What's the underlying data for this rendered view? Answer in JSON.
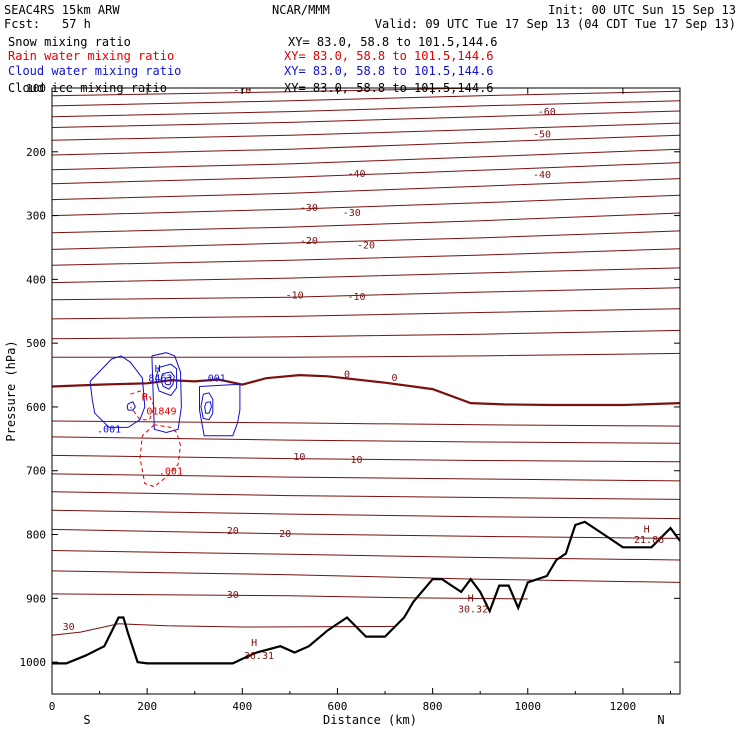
{
  "header": {
    "model": "SEAC4RS 15km ARW",
    "org": "NCAR/MMM",
    "init": "Init: 00 UTC Sun 15 Sep 13",
    "fcst_label": "Fcst:",
    "fcst_value": "57 h",
    "valid": "Valid: 09 UTC Tue 17 Sep 13 (04 CDT Tue 17 Sep 13)",
    "fields": [
      {
        "name": "Snow mixing ratio",
        "xy": "XY=  83.0, 58.8 to 101.5,144.6",
        "color": "#000000"
      },
      {
        "name": "Rain water mixing ratio",
        "xy": "XY=  83.0, 58.8 to 101.5,144.6",
        "color": "#e00000"
      },
      {
        "name": "Cloud water mixing ratio",
        "xy": "XY=  83.0, 58.8 to 101.5,144.6",
        "color": "#1010d0"
      },
      {
        "name": "Cloud ice mixing ratio",
        "xy": "XY=  83.0, 58.8 to 101.5,144.6",
        "color": "#000000"
      }
    ]
  },
  "chart_data": {
    "type": "line",
    "xlabel": "Distance (km)",
    "ylabel": "Pressure (hPa)",
    "xlim": [
      0,
      1320
    ],
    "ylim": [
      1050,
      100
    ],
    "yticks": [
      100,
      200,
      300,
      400,
      500,
      600,
      700,
      800,
      900,
      1000
    ],
    "xticks": [
      0,
      200,
      400,
      600,
      800,
      1000,
      1200
    ],
    "ytick_labels": [
      "100",
      "200",
      "300",
      "400",
      "500",
      "600",
      "700",
      "800",
      "900",
      "1000"
    ],
    "xtick_labels": [
      "0",
      "200",
      "400",
      "600",
      "800",
      "1000",
      "1200"
    ],
    "end_labels": {
      "left": "S",
      "right": "N"
    },
    "colors": {
      "temperature": "#7a1010",
      "terrain": "#000000",
      "rain": "#e00000",
      "cloud": "#1010d0"
    },
    "isotherms": [
      {
        "x": [
          0,
          500,
          900,
          1320
        ],
        "y": [
          112,
          106,
          100,
          93
        ]
      },
      {
        "x": [
          0,
          500,
          900,
          1320
        ],
        "y": [
          128,
          120,
          112,
          105
        ],
        "label": "-70",
        "lx": 400,
        "ly": 104
      },
      {
        "x": [
          0,
          500,
          900,
          1320
        ],
        "y": [
          145,
          137,
          128,
          120
        ]
      },
      {
        "x": [
          0,
          500,
          900,
          1320
        ],
        "y": [
          162,
          154,
          145,
          136
        ],
        "label": "-60",
        "lx": 1040,
        "ly": 138
      },
      {
        "x": [
          0,
          500,
          900,
          1320
        ],
        "y": [
          182,
          174,
          165,
          155
        ]
      },
      {
        "x": [
          0,
          500,
          900,
          1320
        ],
        "y": [
          205,
          196,
          185,
          174
        ],
        "label": "-50",
        "lx": 1030,
        "ly": 173
      },
      {
        "x": [
          0,
          500,
          900,
          1320
        ],
        "y": [
          228,
          219,
          208,
          196
        ]
      },
      {
        "x": [
          0,
          500,
          900,
          1320
        ],
        "y": [
          250,
          240,
          229,
          217
        ],
        "label": "-40",
        "lx": 640,
        "ly": 235
      },
      {
        "x": [
          0,
          500,
          900,
          1320
        ],
        "y": [
          275,
          265,
          254,
          242
        ]
      },
      {
        "x": [
          0,
          500,
          900,
          1320
        ],
        "y": [
          300,
          290,
          280,
          268
        ],
        "label": "-30",
        "lx": 540,
        "ly": 288
      },
      {
        "x": [
          0,
          500,
          900,
          1320
        ],
        "y": [
          327,
          318,
          308,
          296
        ]
      },
      {
        "x": [
          0,
          500,
          900,
          1320
        ],
        "y": [
          353,
          343,
          335,
          324
        ],
        "label": "-20",
        "lx": 540,
        "ly": 340
      },
      {
        "x": [
          0,
          500,
          900,
          1320
        ],
        "y": [
          378,
          370,
          362,
          352
        ]
      },
      {
        "x": [
          0,
          500,
          900,
          1320
        ],
        "y": [
          405,
          398,
          390,
          382
        ]
      },
      {
        "x": [
          0,
          500,
          900,
          1320
        ],
        "y": [
          432,
          428,
          420,
          413
        ],
        "label": "-10",
        "lx": 510,
        "ly": 425
      },
      {
        "x": [
          0,
          500,
          900,
          1320
        ],
        "y": [
          462,
          458,
          452,
          446
        ]
      },
      {
        "x": [
          0,
          500,
          900,
          1320
        ],
        "y": [
          493,
          490,
          486,
          480
        ]
      },
      {
        "x": [
          0,
          500,
          900,
          1320
        ],
        "y": [
          522,
          522,
          520,
          516
        ]
      },
      {
        "x": [
          0,
          500,
          900,
          1320
        ],
        "y": [
          622,
          625,
          628,
          630
        ]
      },
      {
        "x": [
          0,
          500,
          900,
          1320
        ],
        "y": [
          647,
          652,
          655,
          657
        ]
      },
      {
        "x": [
          0,
          500,
          900,
          1320
        ],
        "y": [
          676,
          681,
          684,
          686
        ],
        "label": "10",
        "lx": 640,
        "ly": 683
      },
      {
        "x": [
          0,
          500,
          900,
          1320
        ],
        "y": [
          705,
          710,
          713,
          716
        ]
      },
      {
        "x": [
          0,
          500,
          900,
          1320
        ],
        "y": [
          733,
          739,
          742,
          745
        ]
      },
      {
        "x": [
          0,
          500,
          900,
          1320
        ],
        "y": [
          762,
          768,
          772,
          775
        ]
      },
      {
        "x": [
          0,
          500,
          900,
          1320
        ],
        "y": [
          792,
          799,
          803,
          806
        ],
        "label": "20",
        "lx": 490,
        "ly": 799
      },
      {
        "x": [
          0,
          500,
          900,
          1320
        ],
        "y": [
          825,
          831,
          836,
          840
        ]
      },
      {
        "x": [
          0,
          500,
          900,
          1320
        ],
        "y": [
          857,
          863,
          870,
          875
        ]
      },
      {
        "x": [
          0,
          500,
          740,
          1000
        ],
        "y": [
          893,
          896,
          899,
          901
        ],
        "label": "30",
        "lx": 380,
        "ly": 895
      },
      {
        "x": [
          0,
          60,
          140,
          240,
          400,
          720
        ],
        "y": [
          958,
          953,
          940,
          943,
          945,
          944
        ]
      }
    ],
    "zero_isotherm": {
      "x": [
        0,
        100,
        200,
        250,
        300,
        350,
        400,
        450,
        520,
        580,
        700,
        800,
        880,
        950,
        1050,
        1200,
        1320
      ],
      "y": [
        568,
        565,
        563,
        558,
        560,
        557,
        565,
        555,
        550,
        552,
        562,
        572,
        594,
        596,
        597,
        597,
        594
      ],
      "label": "0",
      "lx": 720,
      "ly": 555
    },
    "terrain": {
      "x": [
        0,
        30,
        70,
        110,
        140,
        150,
        160,
        180,
        200,
        240,
        300,
        380,
        400,
        430,
        480,
        510,
        540,
        580,
        620,
        660,
        700,
        740,
        760,
        800,
        820,
        840,
        860,
        880,
        900,
        920,
        940,
        960,
        980,
        1000,
        1040,
        1060,
        1080,
        1100,
        1120,
        1160,
        1200,
        1240,
        1260,
        1300,
        1320
      ],
      "y": [
        1002,
        1002,
        990,
        975,
        930,
        930,
        955,
        1000,
        1002,
        1002,
        1002,
        1002,
        995,
        985,
        975,
        985,
        975,
        950,
        930,
        960,
        960,
        930,
        905,
        870,
        870,
        880,
        890,
        870,
        890,
        920,
        880,
        880,
        915,
        875,
        865,
        840,
        830,
        785,
        780,
        800,
        820,
        820,
        820,
        790,
        810
      ]
    },
    "cloud_water_contours": [
      {
        "x": [
          80,
          125,
          145,
          165,
          190,
          195,
          185,
          160,
          120,
          90,
          85,
          80
        ],
        "y": [
          560,
          525,
          520,
          530,
          555,
          600,
          620,
          632,
          632,
          610,
          590,
          560
        ]
      },
      {
        "x": [
          210,
          240,
          258,
          270,
          272,
          265,
          240,
          215,
          210
        ],
        "y": [
          520,
          515,
          520,
          545,
          600,
          635,
          640,
          635,
          520
        ]
      },
      {
        "x": [
          310,
          380,
          395,
          395,
          390,
          380,
          320,
          310,
          310
        ],
        "y": [
          568,
          565,
          565,
          605,
          625,
          645,
          645,
          605,
          568
        ]
      },
      {
        "x": [
          225,
          250,
          262,
          262,
          250,
          225,
          218,
          225
        ],
        "y": [
          538,
          533,
          540,
          570,
          582,
          575,
          555,
          538
        ]
      },
      {
        "x": [
          232,
          250,
          257,
          254,
          246,
          234,
          229,
          232
        ],
        "y": [
          548,
          545,
          552,
          565,
          572,
          568,
          558,
          548
        ]
      },
      {
        "x": [
          239,
          248,
          251,
          248,
          240,
          236,
          239
        ],
        "y": [
          555,
          553,
          558,
          565,
          565,
          560,
          555
        ]
      },
      {
        "x": [
          318,
          330,
          338,
          338,
          330,
          318,
          313,
          318
        ],
        "y": [
          580,
          578,
          588,
          610,
          620,
          618,
          600,
          580
        ]
      },
      {
        "x": [
          324,
          333,
          335,
          330,
          323,
          321,
          324
        ],
        "y": [
          593,
          592,
          600,
          610,
          610,
          600,
          593
        ]
      },
      {
        "x": [
          160,
          170,
          175,
          170,
          160,
          158,
          160
        ],
        "y": [
          595,
          592,
          600,
          605,
          605,
          600,
          595
        ]
      }
    ],
    "rain_contours": [
      {
        "x": [
          215,
          190,
          185,
          195,
          215,
          240,
          265,
          270,
          262,
          250,
          215
        ],
        "y": [
          628,
          645,
          680,
          720,
          725,
          710,
          690,
          660,
          640,
          632,
          628
        ]
      },
      {
        "x": [
          165,
          185,
          205,
          215,
          205,
          185,
          165
        ],
        "y": [
          580,
          575,
          583,
          600,
          620,
          620,
          600
        ]
      }
    ],
    "annotations": [
      {
        "text": "H",
        "x": 222,
        "y": 545,
        "color": "#1010d0"
      },
      {
        "text": "8463",
        "x": 228,
        "y": 560,
        "color": "#1010d0"
      },
      {
        "text": ".001",
        "x": 340,
        "y": 560,
        "color": "#1010d0"
      },
      {
        "text": ".001",
        "x": 120,
        "y": 640,
        "color": "#1010d0"
      },
      {
        "text": "H",
        "x": 195,
        "y": 590,
        "color": "#e00000"
      },
      {
        "text": "01849",
        "x": 230,
        "y": 612,
        "color": "#e00000"
      },
      {
        "text": ".001",
        "x": 250,
        "y": 706,
        "color": "#e00000"
      },
      {
        "text": "-70",
        "x": 400,
        "y": 104,
        "color": "#7a1010"
      },
      {
        "text": "-70",
        "x": 775,
        "y": 102,
        "color": "#7a1010"
      },
      {
        "text": "-40",
        "x": 1030,
        "y": 241,
        "color": "#7a1010"
      },
      {
        "text": "-30",
        "x": 630,
        "y": 301,
        "color": "#7a1010"
      },
      {
        "text": "-20",
        "x": 660,
        "y": 352,
        "color": "#7a1010"
      },
      {
        "text": "-10",
        "x": 640,
        "y": 432,
        "color": "#7a1010"
      },
      {
        "text": "0",
        "x": 620,
        "y": 554,
        "color": "#7a1010"
      },
      {
        "text": "10",
        "x": 520,
        "y": 683,
        "color": "#7a1010"
      },
      {
        "text": "20",
        "x": 380,
        "y": 799,
        "color": "#7a1010"
      },
      {
        "text": "30",
        "x": 35,
        "y": 950,
        "color": "#7a1010"
      },
      {
        "text": "H",
        "x": 425,
        "y": 975,
        "color": "#7a1010"
      },
      {
        "text": "36.31",
        "x": 435,
        "y": 995,
        "color": "#7a1010"
      },
      {
        "text": "H",
        "x": 880,
        "y": 905,
        "color": "#7a1010"
      },
      {
        "text": "30.32",
        "x": 885,
        "y": 922,
        "color": "#7a1010"
      },
      {
        "text": "H",
        "x": 1250,
        "y": 797,
        "color": "#7a1010"
      },
      {
        "text": "21.86",
        "x": 1255,
        "y": 813,
        "color": "#7a1010"
      }
    ]
  }
}
